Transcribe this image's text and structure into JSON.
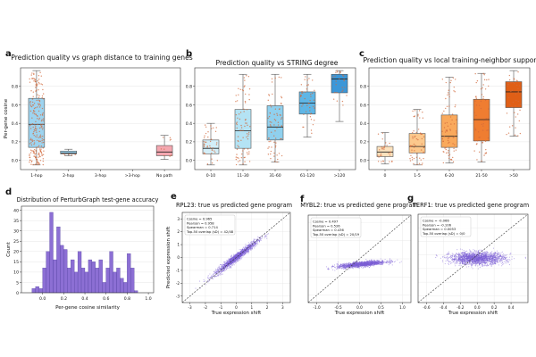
{
  "chart_data": [
    {
      "panel": "a",
      "type": "box",
      "title": "Prediction quality vs graph distance to training genes",
      "ylabel": "Per-gene cosine",
      "ylim": [
        -0.1,
        1.0
      ],
      "yticks": [
        0.0,
        0.2,
        0.4,
        0.6,
        0.8
      ],
      "categories": [
        "1-hop",
        "2-hop",
        "3-hop",
        ">3-hop",
        "No path"
      ],
      "boxes": [
        {
          "q1": 0.14,
          "median": 0.39,
          "q3": 0.67,
          "wlo": -0.05,
          "whi": 0.97,
          "color": "#9dd4f0",
          "n_points": 220
        },
        {
          "q1": 0.07,
          "median": 0.08,
          "q3": 0.1,
          "wlo": 0.05,
          "whi": 0.12,
          "color": "#9dd4f0",
          "n_points": 5
        },
        null,
        null,
        {
          "q1": 0.05,
          "median": 0.09,
          "q3": 0.16,
          "wlo": 0.01,
          "whi": 0.27,
          "color": "#f4a7b0",
          "n_points": 9
        }
      ]
    },
    {
      "panel": "b",
      "type": "box",
      "title": "Prediction quality vs STRING degree",
      "ylim": [
        -0.1,
        1.0
      ],
      "yticks": [
        0.0,
        0.2,
        0.4,
        0.6,
        0.8
      ],
      "categories": [
        "0-10",
        "11-30",
        "31-60",
        "61-120",
        ">120"
      ],
      "boxes": [
        {
          "q1": 0.07,
          "median": 0.13,
          "q3": 0.22,
          "wlo": -0.05,
          "whi": 0.4,
          "color": "#d3eef8",
          "n_points": 40
        },
        {
          "q1": 0.13,
          "median": 0.32,
          "q3": 0.55,
          "wlo": -0.05,
          "whi": 0.93,
          "color": "#b4e3f4",
          "n_points": 80
        },
        {
          "q1": 0.22,
          "median": 0.36,
          "q3": 0.59,
          "wlo": -0.02,
          "whi": 0.93,
          "color": "#8fd0ee",
          "n_points": 70
        },
        {
          "q1": 0.5,
          "median": 0.62,
          "q3": 0.74,
          "wlo": 0.25,
          "whi": 0.93,
          "color": "#5fb6e6",
          "n_points": 45
        },
        {
          "q1": 0.73,
          "median": 0.88,
          "q3": 0.93,
          "wlo": 0.42,
          "whi": 0.97,
          "color": "#3c97d8",
          "n_points": 25
        }
      ]
    },
    {
      "panel": "c",
      "type": "box",
      "title": "Prediction quality vs local training-neighbor support",
      "ylim": [
        -0.1,
        1.0
      ],
      "yticks": [
        0.0,
        0.2,
        0.4,
        0.6,
        0.8
      ],
      "categories": [
        "0",
        "1-5",
        "6-20",
        "21-50",
        ">50"
      ],
      "boxes": [
        {
          "q1": 0.04,
          "median": 0.09,
          "q3": 0.15,
          "wlo": -0.04,
          "whi": 0.3,
          "color": "#fde2bd",
          "n_points": 30
        },
        {
          "q1": 0.08,
          "median": 0.15,
          "q3": 0.29,
          "wlo": -0.05,
          "whi": 0.55,
          "color": "#fcc88c",
          "n_points": 60
        },
        {
          "q1": 0.14,
          "median": 0.26,
          "q3": 0.49,
          "wlo": -0.03,
          "whi": 0.9,
          "color": "#f9a95c",
          "n_points": 75
        },
        {
          "q1": 0.21,
          "median": 0.44,
          "q3": 0.66,
          "wlo": -0.02,
          "whi": 0.94,
          "color": "#ef7d31",
          "n_points": 60
        },
        {
          "q1": 0.57,
          "median": 0.74,
          "q3": 0.85,
          "wlo": 0.26,
          "whi": 0.97,
          "color": "#e05f16",
          "n_points": 45
        }
      ]
    },
    {
      "panel": "d",
      "type": "bar",
      "title": "Distribution of PerturbGraph test-gene accuracy",
      "xlabel": "Per-gene cosine similarity",
      "ylabel": "Count",
      "xlim": [
        -0.2,
        1.05
      ],
      "ylim": [
        0,
        42
      ],
      "xticks": [
        0.0,
        0.2,
        0.4,
        0.6,
        0.8,
        1.0
      ],
      "yticks": [
        0,
        5,
        10,
        15,
        20,
        25,
        30,
        35,
        40
      ],
      "bin_start": -0.1,
      "bin_width": 0.0333,
      "values": [
        2,
        3,
        2,
        12,
        20,
        39,
        16,
        32,
        23,
        21,
        12,
        16,
        10,
        20,
        12,
        10,
        16,
        15,
        12,
        16,
        5,
        12,
        20,
        10,
        12,
        7,
        5,
        19,
        12,
        1
      ],
      "color": "#8c6fd4"
    },
    {
      "panel": "e",
      "type": "scatter",
      "title": "RPL23: true vs predicted gene program",
      "xlabel": "True expression shift",
      "ylabel": "Predicted expression shift",
      "xlim": [
        -3.5,
        3.5
      ],
      "ylim": [
        -3.5,
        3.5
      ],
      "xticks": [
        -3,
        -2,
        -1,
        0,
        1,
        2,
        3
      ],
      "yticks": [
        -3,
        -2,
        -1,
        0,
        1,
        2,
        3
      ],
      "stats": [
        "Cosine = 0.965",
        "Pearson = 0.958",
        "Spearman = 0.714",
        "Top-50 overlap (sD) = 42/48"
      ],
      "cloud": {
        "mean_x": 0.0,
        "mean_y": 0.0,
        "sd_x": 0.7,
        "sd_y": 0.16,
        "slope": 0.92,
        "n": 1400
      }
    },
    {
      "panel": "f",
      "type": "scatter",
      "title": "MYBL2: true vs predicted gene program",
      "xlabel": "True expression shift",
      "xlim": [
        -1.2,
        1.2
      ],
      "ylim": [
        -1.2,
        1.2
      ],
      "xticks": [
        -1.0,
        -0.5,
        0.0,
        0.5,
        1.0
      ],
      "yticks": [],
      "stats": [
        "Cosine = 0.497",
        "Pearson = 0.526",
        "Spearman = 0.436",
        "Top-50 overlap (sD) = 20/19"
      ],
      "cloud": {
        "mean_x": 0.05,
        "mean_y": -0.15,
        "sd_x": 0.28,
        "sd_y": 0.035,
        "slope": 0.12,
        "n": 1400
      }
    },
    {
      "panel": "g",
      "type": "scatter",
      "title": "TERF1: true vs predicted gene program",
      "xlabel": "True expression shift",
      "xlim": [
        -0.7,
        0.6
      ],
      "ylim": [
        -0.7,
        0.6
      ],
      "xticks": [
        -0.6,
        -0.4,
        -0.2,
        0.0,
        0.2,
        0.4
      ],
      "yticks": [],
      "stats": [
        "Cosine = -0.066",
        "Pearson = -0.106",
        "Spearman = 0.0053",
        "Top-50 overlap (sD) = 0/0"
      ],
      "cloud": {
        "mean_x": 0.0,
        "mean_y": -0.05,
        "sd_x": 0.16,
        "sd_y": 0.045,
        "slope": 0.0,
        "n": 1800
      }
    }
  ],
  "panel_labels": [
    "a",
    "b",
    "c",
    "d",
    "e",
    "f",
    "g"
  ],
  "colors": {
    "scatter": "#7b5fd6",
    "dots": "#d2693c",
    "diag": "#333333",
    "axis": "#333333",
    "grid": "#e6e6e6"
  }
}
